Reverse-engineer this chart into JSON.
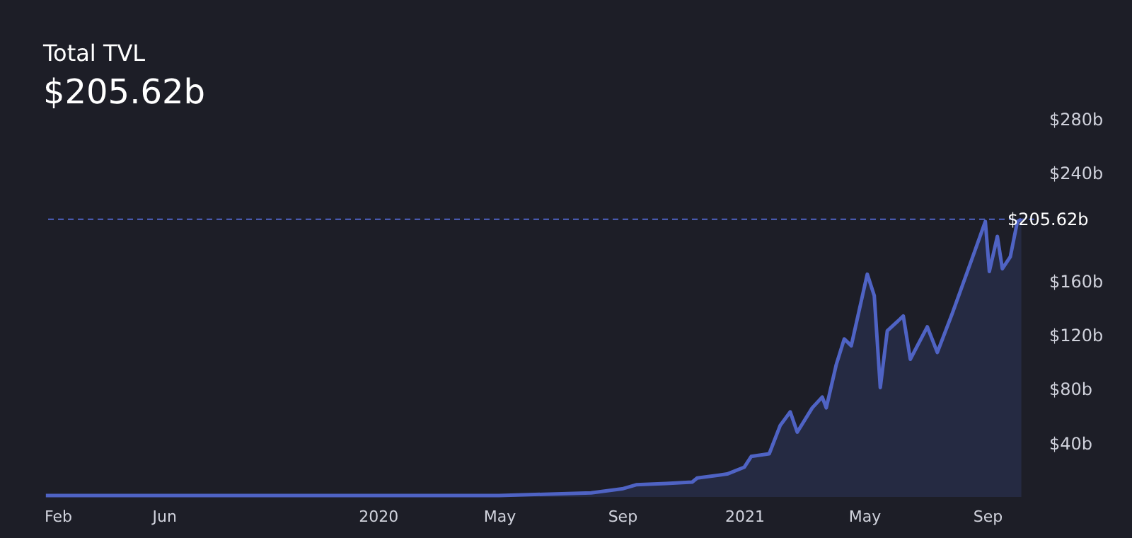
{
  "chart_data": {
    "type": "area",
    "title": "Total TVL",
    "subtitle": "$205.62b",
    "x": [
      "2019-02-03",
      "2019-12-01",
      "2020-05-01",
      "2020-06-15",
      "2020-08-01",
      "2020-09-01",
      "2020-09-15",
      "2020-10-15",
      "2020-11-10",
      "2020-11-15",
      "2020-12-15",
      "2021-01-01",
      "2021-01-08",
      "2021-01-26",
      "2021-02-06",
      "2021-02-16",
      "2021-02-23",
      "2021-03-10",
      "2021-03-20",
      "2021-03-24",
      "2021-04-03",
      "2021-04-11",
      "2021-04-18",
      "2021-05-04",
      "2021-05-11",
      "2021-05-17",
      "2021-05-24",
      "2021-06-09",
      "2021-06-16",
      "2021-07-03",
      "2021-07-13",
      "2021-07-28",
      "2021-08-16",
      "2021-08-30",
      "2021-09-03",
      "2021-09-11",
      "2021-09-16",
      "2021-09-24",
      "2021-10-01",
      "2021-10-05"
    ],
    "series": [
      {
        "color": "#4f63c4",
        "values": [
          1,
          1,
          1,
          2,
          3,
          6,
          9,
          10,
          11,
          14,
          17,
          22,
          30,
          32,
          53,
          63,
          48,
          66,
          74,
          66,
          98,
          117,
          112,
          165,
          149,
          81,
          123,
          134,
          102,
          126,
          107,
          136,
          175,
          204,
          167,
          193,
          169,
          178,
          204,
          205.62
        ]
      }
    ],
    "xlim": [
      "2019-02-01",
      "2021-10-18"
    ],
    "xticks": [
      {
        "value": "2019-02-01",
        "label": "Feb"
      },
      {
        "value": "2019-06-01",
        "label": "Jun"
      },
      {
        "value": "2020-01-01",
        "label": "2020"
      },
      {
        "value": "2020-05-01",
        "label": "May"
      },
      {
        "value": "2020-09-01",
        "label": "Sep"
      },
      {
        "value": "2021-01-01",
        "label": "2021"
      },
      {
        "value": "2021-05-01",
        "label": "May"
      },
      {
        "value": "2021-09-01",
        "label": "Sep"
      }
    ],
    "ylim": [
      0,
      280
    ],
    "yticks": [
      {
        "value": 40,
        "label": "$40b"
      },
      {
        "value": 80,
        "label": "$80b"
      },
      {
        "value": 120,
        "label": "$120b"
      },
      {
        "value": 160,
        "label": "$160b"
      },
      {
        "value": 240,
        "label": "$240b"
      },
      {
        "value": 280,
        "label": "$280b"
      }
    ],
    "ref_lines": [
      {
        "axis": "y",
        "value": 205.62,
        "label": "$205.62b",
        "color": "#4f63c4",
        "line_style": "dashed"
      }
    ],
    "grid": false
  }
}
